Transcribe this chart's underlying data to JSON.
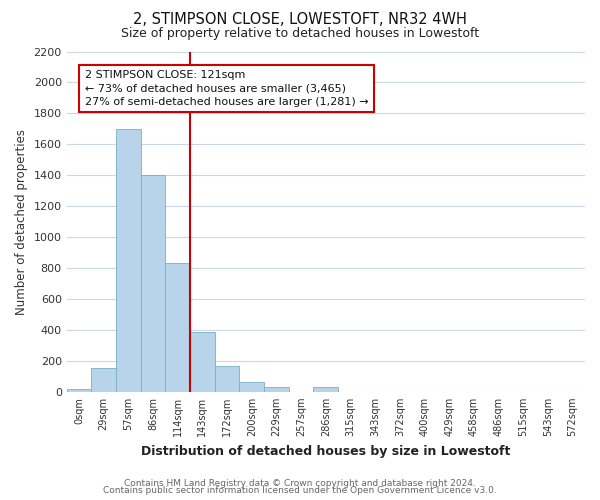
{
  "title": "2, STIMPSON CLOSE, LOWESTOFT, NR32 4WH",
  "subtitle": "Size of property relative to detached houses in Lowestoft",
  "xlabel": "Distribution of detached houses by size in Lowestoft",
  "ylabel": "Number of detached properties",
  "bin_labels": [
    "0sqm",
    "29sqm",
    "57sqm",
    "86sqm",
    "114sqm",
    "143sqm",
    "172sqm",
    "200sqm",
    "229sqm",
    "257sqm",
    "286sqm",
    "315sqm",
    "343sqm",
    "372sqm",
    "400sqm",
    "429sqm",
    "458sqm",
    "486sqm",
    "515sqm",
    "543sqm",
    "572sqm"
  ],
  "bar_heights": [
    20,
    155,
    1700,
    1400,
    830,
    385,
    165,
    65,
    30,
    0,
    30,
    0,
    0,
    0,
    0,
    0,
    0,
    0,
    0,
    0,
    0
  ],
  "bar_color": "#b8d4ea",
  "bar_edge_color": "#7aaec8",
  "vline_color": "#cc0000",
  "ylim": [
    0,
    2200
  ],
  "yticks": [
    0,
    200,
    400,
    600,
    800,
    1000,
    1200,
    1400,
    1600,
    1800,
    2000,
    2200
  ],
  "annotation_title": "2 STIMPSON CLOSE: 121sqm",
  "annotation_line1": "← 73% of detached houses are smaller (3,465)",
  "annotation_line2": "27% of semi-detached houses are larger (1,281) →",
  "annotation_box_color": "#ffffff",
  "annotation_box_edge": "#cc0000",
  "footer_line1": "Contains HM Land Registry data © Crown copyright and database right 2024.",
  "footer_line2": "Contains public sector information licensed under the Open Government Licence v3.0.",
  "background_color": "#ffffff",
  "grid_color": "#c8d8e8"
}
